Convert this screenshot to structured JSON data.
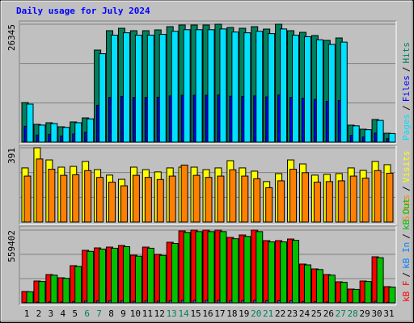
{
  "chart_data": {
    "type": "bar",
    "title": "Daily usage for July 2024",
    "categories": [
      "1",
      "2",
      "3",
      "4",
      "5",
      "6",
      "7",
      "8",
      "9",
      "10",
      "11",
      "12",
      "13",
      "14",
      "15",
      "16",
      "17",
      "18",
      "19",
      "20",
      "21",
      "22",
      "23",
      "24",
      "25",
      "26",
      "27",
      "28",
      "29",
      "30",
      "31"
    ],
    "category_colors": [
      "#000000",
      "#000000",
      "#000000",
      "#000000",
      "#000000",
      "#00805c",
      "#00805c",
      "#000000",
      "#000000",
      "#000000",
      "#000000",
      "#000000",
      "#00805c",
      "#00805c",
      "#000000",
      "#000000",
      "#000000",
      "#000000",
      "#000000",
      "#00805c",
      "#00805c",
      "#000000",
      "#000000",
      "#000000",
      "#000000",
      "#000000",
      "#00805c",
      "#00805c",
      "#000000",
      "#000000",
      "#000000"
    ],
    "legend_separator": "/",
    "panels": [
      {
        "ylim": [
          0,
          26345
        ],
        "yticks": [
          26345
        ],
        "grid": true,
        "legend_reversed": true,
        "series": [
          {
            "name": "Hits",
            "color": "#00805c",
            "values": [
              8842,
              3970,
              4331,
              3428,
              4511,
              5413,
              20571,
              24901,
              25443,
              24901,
              24901,
              25082,
              25804,
              26165,
              26165,
              26165,
              26345,
              25623,
              25443,
              25804,
              25262,
              26345,
              24901,
              24540,
              23819,
              22736,
              23277,
              3789,
              2887,
              5052,
              1985
            ]
          },
          {
            "name": "Files",
            "color": "#0000ff",
            "values": [
              3540,
              1590,
              1730,
              1370,
              1800,
              2170,
              8230,
              9960,
              10180,
              9960,
              9960,
              10030,
              10320,
              10470,
              10470,
              10470,
              10540,
              10250,
              10180,
              10320,
              10100,
              10540,
              9960,
              9820,
              9530,
              9090,
              9310,
              1520,
              1150,
              2020,
              790
            ]
          },
          {
            "name": "Pages",
            "color": "#00e0ff",
            "values": [
              8490,
              3800,
              4150,
              3290,
              4330,
              5200,
              19750,
              23900,
              24430,
              23900,
              23900,
              24080,
              24770,
              25120,
              25120,
              25120,
              25290,
              24600,
              24430,
              24770,
              24250,
              25290,
              23900,
              23560,
              22870,
              21830,
              22350,
              3640,
              2770,
              4850,
              1910
            ]
          }
        ]
      },
      {
        "ylim": [
          0,
          391
        ],
        "yticks": [
          391
        ],
        "grid": true,
        "legend_reversed": true,
        "series": [
          {
            "name": "Visits",
            "color": "#ffff00",
            "values": [
              285,
              391,
              327,
              289,
              293,
              319,
              276,
              247,
              225,
              289,
              276,
              264,
              285,
              289,
              289,
              276,
              285,
              323,
              285,
              268,
              213,
              255,
              327,
              306,
              247,
              251,
              255,
              285,
              272,
              319,
              302
            ]
          },
          {
            "name": "Sites",
            "color": "#ff8000",
            "values": [
              242,
              332,
              278,
              246,
              249,
              271,
              235,
              210,
              191,
              246,
              235,
              224,
              242,
              300,
              246,
              235,
              242,
              275,
              242,
              228,
              181,
              217,
              278,
              260,
              210,
              213,
              217,
              242,
              231,
              271,
              257
            ]
          }
        ]
      },
      {
        "ylim": [
          0,
          559402
        ],
        "yticks": [
          559402
        ],
        "grid": true,
        "legend_reversed": false,
        "series": [
          {
            "name": "kB F",
            "color": "#ff0000",
            "values": [
              87018,
              167821,
              217545,
              192683,
              285917,
              404013,
              422659,
              428875,
              441306,
              366720,
              428875,
              372936,
              466168,
              553186,
              559402,
              559402,
              559402,
              503462,
              522109,
              559402,
              478600,
              478600,
              491033,
              298348,
              261055,
              217545,
              161606,
              105665,
              167821,
              354289,
              124312
            ]
          },
          {
            "name": "kB In",
            "color": "#0080ff",
            "values": [
              2900,
              5600,
              7300,
              6400,
              9500,
              13500,
              14100,
              14300,
              14700,
              12200,
              14300,
              12400,
              15500,
              18400,
              18600,
              18600,
              18600,
              16800,
              17400,
              18600,
              16000,
              16000,
              16400,
              9900,
              8700,
              7300,
              5400,
              3500,
              5600,
              11800,
              4100
            ]
          },
          {
            "name": "kB Out",
            "color": "#00c000",
            "values": [
              85000,
              164000,
              213000,
              188000,
              280000,
              396000,
              414000,
              420000,
              432000,
              359000,
              420000,
              365000,
              457000,
              542000,
              548000,
              548000,
              548000,
              493000,
              511000,
              548000,
              469000,
              469000,
              481000,
              292000,
              256000,
              213000,
              158000,
              103000,
              164000,
              347000,
              121000
            ]
          }
        ]
      }
    ]
  }
}
